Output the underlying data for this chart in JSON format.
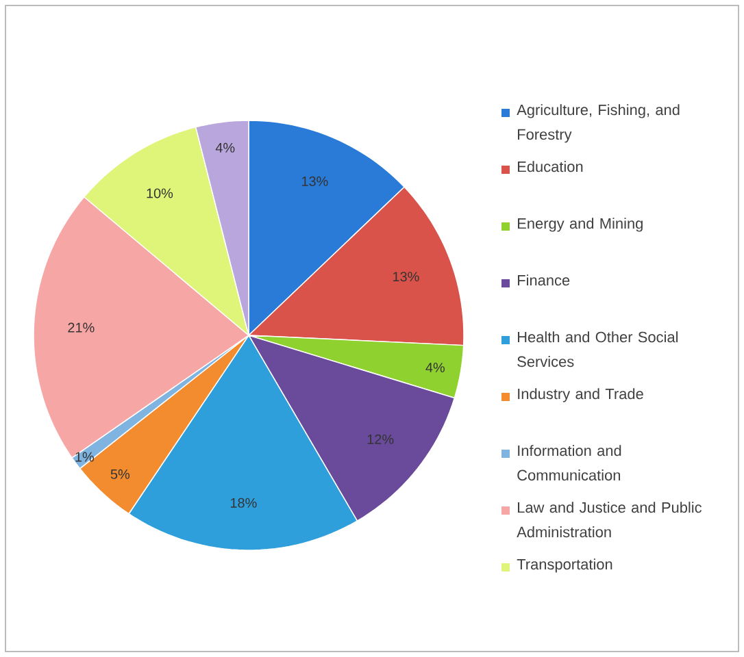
{
  "chart_data": {
    "type": "pie",
    "categories": [
      "Agriculture, Fishing, and Forestry",
      "Education",
      "Energy and Mining",
      "Finance",
      "Health and Other Social Services",
      "Industry and Trade",
      "Information and Communication",
      "Law and Justice and Public Administration",
      "Transportation",
      null
    ],
    "values": [
      13,
      13,
      4,
      12,
      18,
      5,
      1,
      21,
      10,
      4
    ],
    "value_labels": [
      "13%",
      "13%",
      "4%",
      "12%",
      "18%",
      "5%",
      "1%",
      "21%",
      "10%",
      "4%"
    ],
    "colors": [
      "#2a7bd8",
      "#d9534a",
      "#8fd12e",
      "#6a4a9a",
      "#2f9fdc",
      "#f28c2e",
      "#7fb3e0",
      "#f7a6a6",
      "#dff57a",
      "#b9a6dc"
    ],
    "legend": "right"
  }
}
